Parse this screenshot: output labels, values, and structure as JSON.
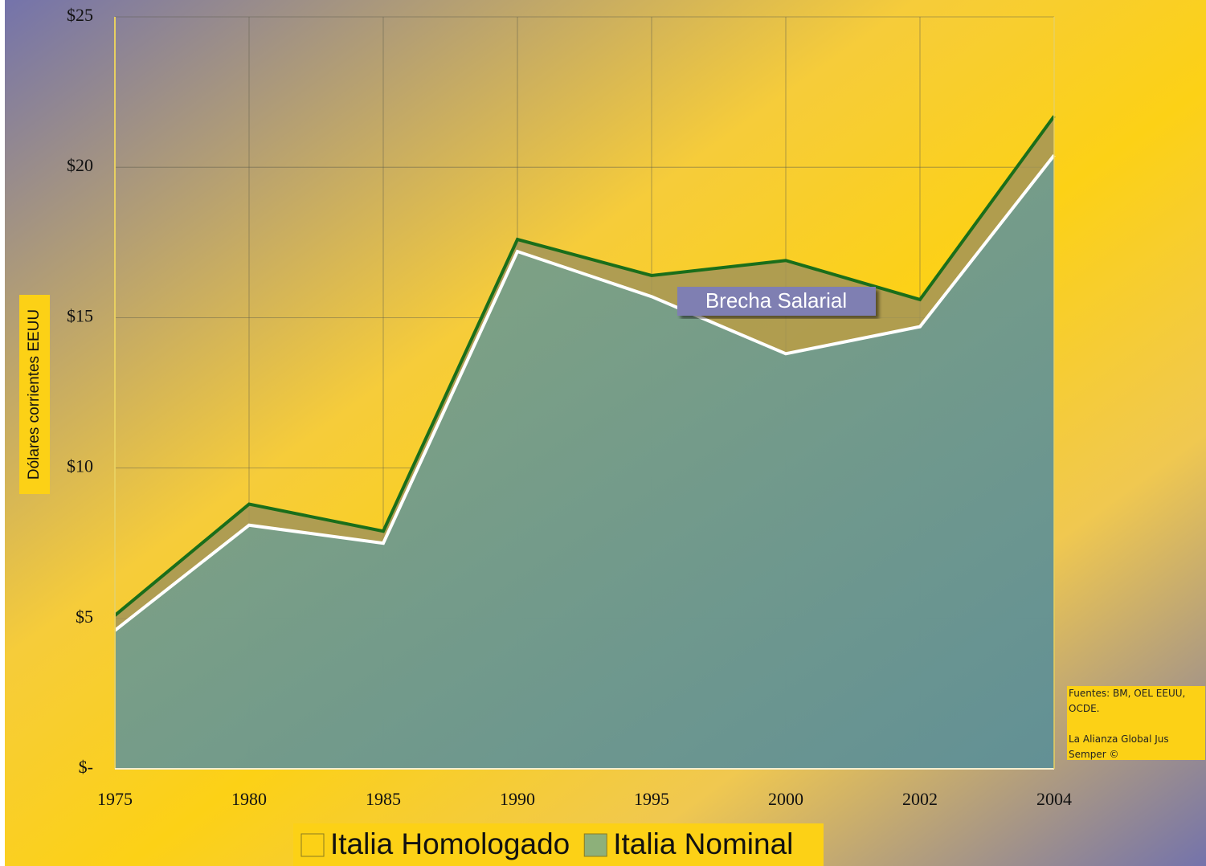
{
  "chart_data": {
    "type": "area",
    "y_axis_label": "Dólares corrientes EEUU",
    "annotation": "Brecha Salarial",
    "source_lines": [
      "Fuentes: BM, OEL EEUU, OCDE.",
      "La Alianza Global Jus Semper ©"
    ],
    "categories": [
      "1975",
      "1980",
      "1985",
      "1990",
      "1995",
      "2000",
      "2002",
      "2004"
    ],
    "series": [
      {
        "name": "Italia Homologado",
        "color": "#1a6e1a",
        "fill": "#fcd116",
        "values": [
          5.1,
          8.8,
          7.9,
          17.6,
          16.4,
          16.9,
          15.6,
          21.7
        ]
      },
      {
        "name": "Italia Nominal",
        "color": "#ffffff",
        "fill": "#8db07a",
        "values": [
          4.6,
          8.1,
          7.5,
          17.2,
          15.7,
          13.8,
          14.7,
          20.4
        ]
      }
    ],
    "ylim": [
      0,
      25
    ],
    "yticks": [
      {
        "value": 0,
        "label": "$-"
      },
      {
        "value": 5,
        "label": "$5"
      },
      {
        "value": 10,
        "label": "$10"
      },
      {
        "value": 15,
        "label": "$15"
      },
      {
        "value": 20,
        "label": "$20"
      },
      {
        "value": 25,
        "label": "$25"
      }
    ],
    "grid": true
  }
}
